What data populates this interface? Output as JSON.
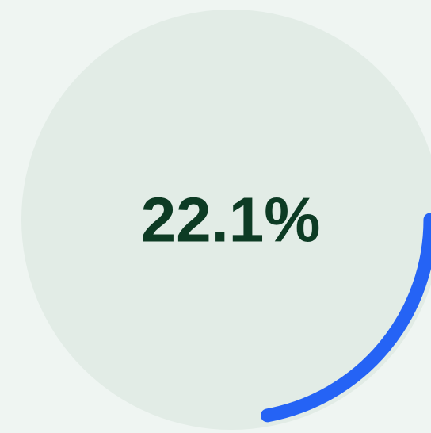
{
  "chart_data": {
    "type": "progress",
    "values": [
      22.1
    ],
    "value_labels": [
      "22.1%"
    ],
    "color": "#2563f5",
    "ylim": [
      0,
      100
    ]
  }
}
